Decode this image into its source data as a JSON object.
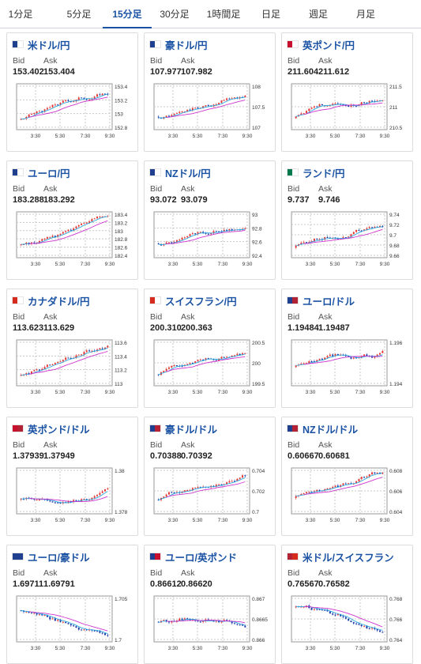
{
  "tabs": [
    "1分足",
    "5分足",
    "15分足",
    "30分足",
    "1時間足",
    "日足",
    "週足",
    "月足"
  ],
  "active_tab": 2,
  "labels": {
    "bid": "Bid",
    "ask": "Ask"
  },
  "time_ticks": [
    "3:30",
    "5:30",
    "7:30",
    "9:30"
  ],
  "cards": [
    {
      "pair": "米ドル/円",
      "flags": [
        "#1f3f8f",
        "#ffffff"
      ],
      "bid": "153.402",
      "ask": "153.404",
      "chart_data": {
        "type": "candlestick",
        "y_ticks": [
          "153.4",
          "153.2",
          "153",
          "152.8"
        ],
        "ylim": [
          152.8,
          153.4
        ]
      }
    },
    {
      "pair": "豪ドル/円",
      "flags": [
        "#1f3f8f",
        "#ffffff"
      ],
      "bid": "107.977",
      "ask": "107.982",
      "chart_data": {
        "type": "candlestick",
        "y_ticks": [
          "108",
          "107.5",
          "107"
        ],
        "ylim": [
          107,
          108
        ]
      }
    },
    {
      "pair": "英ポンド/円",
      "flags": [
        "#c8102e",
        "#ffffff"
      ],
      "bid": "211.604",
      "ask": "211.612",
      "chart_data": {
        "type": "candlestick",
        "y_ticks": [
          "211.5",
          "211",
          "210.5"
        ],
        "ylim": [
          210.5,
          211.5
        ]
      }
    },
    {
      "pair": "ユーロ/円",
      "flags": [
        "#1f3f8f",
        "#ffffff"
      ],
      "bid": "183.288",
      "ask": "183.292",
      "chart_data": {
        "type": "candlestick",
        "y_ticks": [
          "183.4",
          "183.2",
          "183",
          "182.8",
          "182.6",
          "182.4"
        ],
        "ylim": [
          182.4,
          183.4
        ]
      }
    },
    {
      "pair": "NZドル/円",
      "flags": [
        "#1f3f8f",
        "#ffffff"
      ],
      "bid": "93.072",
      "ask": "93.079",
      "chart_data": {
        "type": "candlestick",
        "y_ticks": [
          "93",
          "92.8",
          "92.6",
          "92.4"
        ],
        "ylim": [
          92.4,
          93
        ]
      }
    },
    {
      "pair": "ランド/円",
      "flags": [
        "#007a4d",
        "#ffffff"
      ],
      "bid": "9.737",
      "ask": "9.746",
      "chart_data": {
        "type": "candlestick",
        "y_ticks": [
          "9.74",
          "9.72",
          "9.7",
          "9.68",
          "9.66"
        ],
        "ylim": [
          9.66,
          9.74
        ]
      }
    },
    {
      "pair": "カナダドル/円",
      "flags": [
        "#d52b1e",
        "#ffffff"
      ],
      "bid": "113.623",
      "ask": "113.629",
      "chart_data": {
        "type": "candlestick",
        "y_ticks": [
          "113.6",
          "113.4",
          "113.2",
          "113"
        ],
        "ylim": [
          113,
          113.6
        ]
      }
    },
    {
      "pair": "スイスフラン/円",
      "flags": [
        "#d52b1e",
        "#ffffff"
      ],
      "bid": "200.310",
      "ask": "200.363",
      "chart_data": {
        "type": "candlestick",
        "y_ticks": [
          "200.5",
          "200",
          "199.5"
        ],
        "ylim": [
          199.5,
          200.5
        ]
      }
    },
    {
      "pair": "ユーロ/ドル",
      "flags": [
        "#1f3f8f",
        "#b22234"
      ],
      "bid": "1.19484",
      "ask": "1.19487",
      "chart_data": {
        "type": "candlestick",
        "y_ticks": [
          "1.196",
          "1.194"
        ],
        "ylim": [
          1.194,
          1.196
        ]
      }
    },
    {
      "pair": "英ポンド/ドル",
      "flags": [
        "#c8102e",
        "#b22234"
      ],
      "bid": "1.37939",
      "ask": "1.37949",
      "chart_data": {
        "type": "candlestick",
        "y_ticks": [
          "1.38",
          "1.378"
        ],
        "ylim": [
          1.378,
          1.38
        ]
      }
    },
    {
      "pair": "豪ドル/ドル",
      "flags": [
        "#1f3f8f",
        "#b22234"
      ],
      "bid": "0.70388",
      "ask": "0.70392",
      "chart_data": {
        "type": "candlestick",
        "y_ticks": [
          "0.704",
          "0.702",
          "0.7"
        ],
        "ylim": [
          0.7,
          0.704
        ]
      }
    },
    {
      "pair": "NZドル/ドル",
      "flags": [
        "#1f3f8f",
        "#b22234"
      ],
      "bid": "0.60667",
      "ask": "0.60681",
      "chart_data": {
        "type": "candlestick",
        "y_ticks": [
          "0.608",
          "0.606",
          "0.604"
        ],
        "ylim": [
          0.604,
          0.608
        ]
      }
    },
    {
      "pair": "ユーロ/豪ドル",
      "flags": [
        "#1f3f8f",
        "#1f3f8f"
      ],
      "bid": "1.69711",
      "ask": "1.69791",
      "chart_data": {
        "type": "candlestick",
        "y_ticks": [
          "1.705",
          "1.7"
        ],
        "ylim": [
          1.7,
          1.705
        ]
      }
    },
    {
      "pair": "ユーロ/英ポンド",
      "flags": [
        "#1f3f8f",
        "#c8102e"
      ],
      "bid": "0.86612",
      "ask": "0.86620",
      "chart_data": {
        "type": "candlestick",
        "y_ticks": [
          "0.867",
          "0.8665",
          "0.866"
        ],
        "ylim": [
          0.866,
          0.867
        ]
      }
    },
    {
      "pair": "米ドル/スイスフラン",
      "flags": [
        "#b22234",
        "#d52b1e"
      ],
      "bid": "0.76567",
      "ask": "0.76582",
      "chart_data": {
        "type": "candlestick",
        "y_ticks": [
          "0.768",
          "0.766",
          "0.764"
        ],
        "ylim": [
          0.764,
          0.768
        ]
      }
    }
  ],
  "colors": {
    "up": "#e53935",
    "down": "#1a3aa8",
    "ma_short": "#29a8e0",
    "ma_long": "#cc33cc",
    "accent": "#1a52a3"
  }
}
